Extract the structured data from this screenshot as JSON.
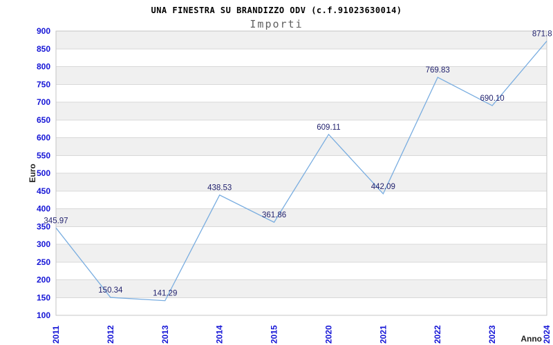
{
  "chart_data": {
    "type": "line",
    "title": "UNA FINESTRA SU BRANDIZZO ODV (c.f.91023630014)",
    "subtitle": "Importi",
    "xlabel": "Anno",
    "ylabel": "Euro",
    "categories": [
      "2011",
      "2012",
      "2013",
      "2014",
      "2015",
      "2020",
      "2021",
      "2022",
      "2023",
      "2024"
    ],
    "values": [
      345.97,
      150.34,
      141.29,
      438.53,
      361.86,
      609.11,
      442.09,
      769.83,
      690.1,
      871.8
    ],
    "point_labels": [
      "345.97",
      "150.34",
      "141.29",
      "438.53",
      "361.86",
      "609.11",
      "442.09",
      "769.83",
      "690.10",
      "871.8"
    ],
    "ylim": [
      100,
      900
    ],
    "ytick_step": 50,
    "grid": true,
    "legend": "none",
    "colors": {
      "line": "#79ade0",
      "tick_label": "#1414d6",
      "point_label": "#22226e",
      "band_gray": "#f0f0f0",
      "band_white": "#ffffff",
      "gridline": "#d8d8d8",
      "plot_border": "#c4c4c4",
      "title": "#000000",
      "subtitle": "#606060",
      "axis_title": "#222222"
    }
  }
}
